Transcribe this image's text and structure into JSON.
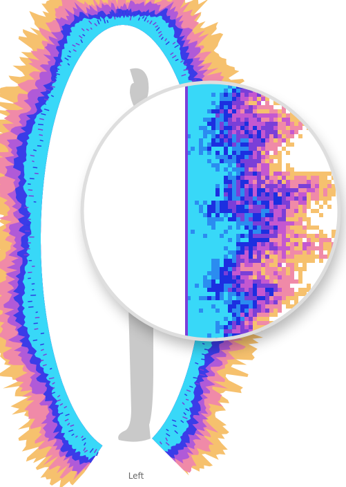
{
  "label": "Left"
}
